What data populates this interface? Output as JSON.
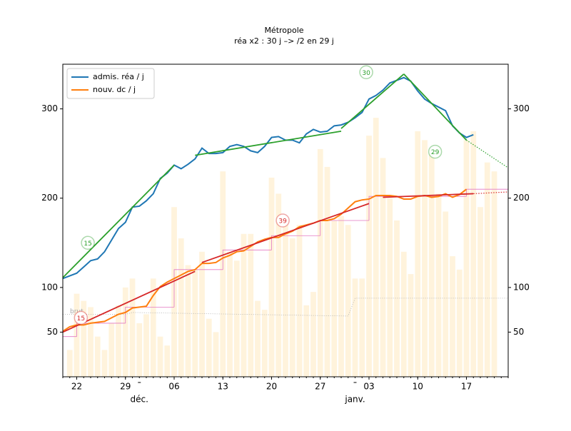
{
  "chart_data": {
    "type": "line",
    "title": "Métropole",
    "subtitle": "réa x2 : 30 j –> /2 en 29 j",
    "x": [
      0,
      1,
      2,
      3,
      4,
      5,
      6,
      7,
      8,
      9,
      10,
      11,
      12,
      13,
      14,
      15,
      16,
      17,
      18,
      19,
      20,
      21,
      22,
      23,
      24,
      25,
      26,
      27,
      28,
      29,
      30,
      31,
      32,
      33,
      34,
      35,
      36,
      37,
      38,
      39,
      40,
      41,
      42,
      43,
      44,
      45,
      46,
      47,
      48,
      49,
      50,
      51,
      52,
      53,
      54,
      55,
      56,
      57,
      58,
      59
    ],
    "series": [
      {
        "name": "admis. réa / j",
        "color": "#1f77b4",
        "values": [
          110,
          113,
          116,
          123,
          130,
          132,
          140,
          153,
          166,
          173,
          190,
          191,
          197,
          205,
          222,
          228,
          237,
          233,
          238,
          244,
          256,
          250,
          250,
          251,
          258,
          260,
          258,
          253,
          251,
          258,
          268,
          269,
          265,
          265,
          262,
          272,
          277,
          274,
          275,
          281,
          282,
          285,
          290,
          296,
          311,
          315,
          321,
          329,
          332,
          335,
          331,
          320,
          311,
          306,
          302,
          298,
          281,
          273,
          268,
          271
        ]
      },
      {
        "name": "nouv. dc / j",
        "color": "#ff7f0e",
        "values": [
          51,
          56,
          58,
          58,
          60,
          61,
          62,
          66,
          70,
          72,
          77,
          78,
          79,
          91,
          101,
          106,
          110,
          114,
          118,
          120,
          127,
          127,
          128,
          133,
          136,
          140,
          141,
          146,
          151,
          154,
          156,
          156,
          160,
          163,
          168,
          170,
          172,
          175,
          175,
          177,
          182,
          189,
          196,
          198,
          199,
          203,
          203,
          203,
          202,
          199,
          199,
          202,
          203,
          201,
          202,
          205,
          201,
          204,
          210,
          null
        ]
      }
    ],
    "trends": [
      {
        "color": "#2ca02c",
        "x": [
          0,
          16
        ],
        "values": [
          111,
          237
        ],
        "style": "solid"
      },
      {
        "color": "#2ca02c",
        "x": [
          19,
          40
        ],
        "values": [
          248,
          275
        ],
        "style": "solid"
      },
      {
        "color": "#2ca02c",
        "x": [
          40,
          49
        ],
        "values": [
          278,
          339
        ],
        "style": "solid"
      },
      {
        "color": "#2ca02c",
        "x": [
          49,
          58
        ],
        "values": [
          339,
          265
        ],
        "style": "solid"
      },
      {
        "color": "#2ca02c",
        "x": [
          58,
          64
        ],
        "values": [
          265,
          234
        ],
        "style": "dotted"
      },
      {
        "color": "#d62728",
        "x": [
          0,
          19
        ],
        "values": [
          50,
          118
        ],
        "style": "solid"
      },
      {
        "color": "#d62728",
        "x": [
          20,
          44
        ],
        "values": [
          128,
          194
        ],
        "style": "solid"
      },
      {
        "color": "#d62728",
        "x": [
          46,
          59
        ],
        "values": [
          201,
          205
        ],
        "style": "solid"
      },
      {
        "color": "#d62728",
        "x": [
          59,
          64
        ],
        "values": [
          205,
          207
        ],
        "style": "dotted"
      }
    ],
    "bars": {
      "color": "#fff3dc",
      "x": [
        1,
        2,
        3,
        4,
        5,
        6,
        7,
        8,
        9,
        10,
        11,
        12,
        13,
        14,
        15,
        16,
        17,
        18,
        19,
        20,
        21,
        22,
        23,
        24,
        25,
        26,
        27,
        28,
        29,
        30,
        31,
        32,
        33,
        34,
        35,
        36,
        37,
        38,
        39,
        40,
        41,
        42,
        43,
        44,
        45,
        46,
        47,
        48,
        49,
        50,
        51,
        52,
        53,
        54,
        55,
        56,
        57,
        58,
        59,
        60,
        61,
        62
      ],
      "values": [
        30,
        93,
        85,
        78,
        45,
        30,
        60,
        80,
        100,
        110,
        60,
        70,
        110,
        45,
        35,
        190,
        155,
        125,
        120,
        140,
        65,
        50,
        230,
        140,
        130,
        160,
        160,
        85,
        75,
        223,
        205,
        175,
        155,
        170,
        80,
        95,
        255,
        235,
        175,
        180,
        170,
        110,
        110,
        270,
        290,
        245,
        200,
        175,
        140,
        115,
        275,
        265,
        250,
        205,
        185,
        135,
        120,
        265,
        275,
        190,
        240,
        230
      ]
    },
    "steps": {
      "color": "#e377c2",
      "edges": [
        0,
        2,
        9,
        16,
        23,
        30,
        37,
        44,
        58,
        64
      ],
      "values": [
        45,
        60,
        78,
        120,
        142,
        158,
        175,
        202,
        210
      ]
    },
    "baseline": {
      "name": "brut",
      "color": "#aaaaaa",
      "x": [
        0,
        9,
        10,
        41,
        42,
        64
      ],
      "values": [
        70,
        70,
        72,
        68,
        88,
        88
      ]
    },
    "annotations": [
      {
        "text": "15",
        "x": 3.6,
        "y": 150,
        "color": "#2ca02c"
      },
      {
        "text": "30",
        "x": 43.6,
        "y": 341,
        "color": "#2ca02c"
      },
      {
        "text": "29",
        "x": 53.5,
        "y": 252,
        "color": "#2ca02c"
      },
      {
        "text": "39",
        "x": 31.6,
        "y": 175,
        "color": "#d62728"
      },
      {
        "text": "15",
        "x": 2.6,
        "y": 66,
        "color": "#d62728"
      }
    ],
    "xlim": [
      0,
      64
    ],
    "xticks": [
      {
        "value": 2,
        "label": "22"
      },
      {
        "value": 9,
        "label": "29"
      },
      {
        "value": 16,
        "label": "06"
      },
      {
        "value": 23,
        "label": "13"
      },
      {
        "value": 30,
        "label": "20"
      },
      {
        "value": 37,
        "label": "27"
      },
      {
        "value": 44,
        "label": "03"
      },
      {
        "value": 51,
        "label": "10"
      },
      {
        "value": 58,
        "label": "17"
      }
    ],
    "months": [
      {
        "value": 11,
        "label": "déc."
      },
      {
        "value": 42,
        "label": "janv."
      }
    ],
    "ylim": [
      0,
      350
    ],
    "yticks": [
      50,
      100,
      200,
      300
    ],
    "y2lim": [
      0,
      350
    ],
    "y2ticks": [
      50,
      100,
      200,
      300
    ],
    "legend": "upper left"
  }
}
